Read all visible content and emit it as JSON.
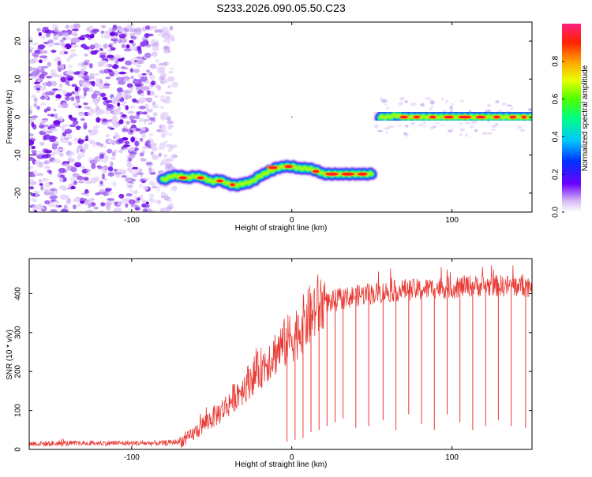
{
  "figure": {
    "title": "S233.2026.090.05.50.C23"
  },
  "chart_data": [
    {
      "type": "heatmap",
      "xlabel": "Height of straight line (km)",
      "ylabel": "Frequency (Hz)",
      "xlim": [
        -164,
        150
      ],
      "ylim": [
        -25,
        25
      ],
      "x_ticks": [
        -100,
        0,
        100
      ],
      "y_ticks": [
        -20,
        -10,
        0,
        10,
        20
      ],
      "noise_region": {
        "x": [
          -164,
          -76
        ],
        "y": [
          -25,
          24
        ]
      },
      "ridge": {
        "x": [
          -80,
          -75,
          -70,
          -65,
          -60,
          -55,
          -50,
          -45,
          -40,
          -35,
          -30,
          -25,
          -20,
          -15,
          -10,
          -5,
          0,
          5,
          10,
          15,
          20,
          25,
          30,
          35,
          40,
          45,
          50,
          55,
          60,
          65,
          70,
          75,
          80,
          85,
          90,
          95,
          100,
          105,
          110,
          115,
          120,
          125,
          130,
          135,
          140,
          145,
          148
        ],
        "freq": [
          -16.5,
          -15.5,
          -15.5,
          -16,
          -15.5,
          -16,
          -17,
          -16.5,
          -17.5,
          -18,
          -17.5,
          -17,
          -15.5,
          -14.5,
          -13.5,
          -13,
          -13,
          -13.5,
          -13.5,
          -14,
          -15,
          -15,
          -15,
          -15,
          -15,
          -15,
          -15,
          0,
          0,
          0.5,
          0,
          0,
          0,
          0,
          0,
          0,
          0,
          0,
          0,
          0,
          0,
          0,
          0,
          0,
          0,
          0,
          0
        ]
      },
      "colorbar": {
        "label": "Normalized spectral amplitude",
        "range": [
          0,
          1
        ],
        "ticks": [
          0.0,
          0.2,
          0.4,
          0.6,
          0.8
        ],
        "tick_labels": [
          "0.0",
          "0.2",
          "0.4",
          "0.6",
          "0.8"
        ]
      }
    },
    {
      "type": "line",
      "xlabel": "Height of straight line (km)",
      "ylabel": "SNR (10 * v/v)",
      "xlim": [
        -164,
        150
      ],
      "ylim": [
        0,
        490
      ],
      "x_ticks": [
        -100,
        0,
        100
      ],
      "y_ticks": [
        0,
        100,
        200,
        300,
        400
      ],
      "series": [
        {
          "name": "SNR",
          "color": "#e83a34",
          "x": [
            -164,
            -140,
            -120,
            -100,
            -80,
            -70,
            -65,
            -60,
            -55,
            -50,
            -45,
            -40,
            -35,
            -30,
            -25,
            -20,
            -15,
            -10,
            -5,
            0,
            5,
            10,
            15,
            20,
            25,
            30,
            40,
            50,
            60,
            70,
            80,
            90,
            100,
            110,
            120,
            130,
            140,
            150
          ],
          "trend": [
            15,
            15,
            16,
            16,
            16,
            20,
            28,
            45,
            65,
            80,
            95,
            115,
            140,
            160,
            185,
            205,
            230,
            250,
            270,
            290,
            310,
            335,
            365,
            375,
            380,
            385,
            395,
            400,
            405,
            410,
            410,
            415,
            415,
            420,
            420,
            420,
            420,
            420
          ]
        }
      ],
      "dips": {
        "x": [
          -3,
          2,
          7,
          12,
          17,
          22,
          27,
          32,
          40,
          48,
          57,
          65,
          73,
          81,
          89,
          97,
          105,
          113,
          121,
          129,
          137,
          146
        ],
        "value": [
          20,
          25,
          30,
          45,
          50,
          60,
          70,
          80,
          55,
          60,
          75,
          50,
          90,
          65,
          50,
          90,
          70,
          50,
          60,
          75,
          60,
          55
        ]
      }
    }
  ]
}
